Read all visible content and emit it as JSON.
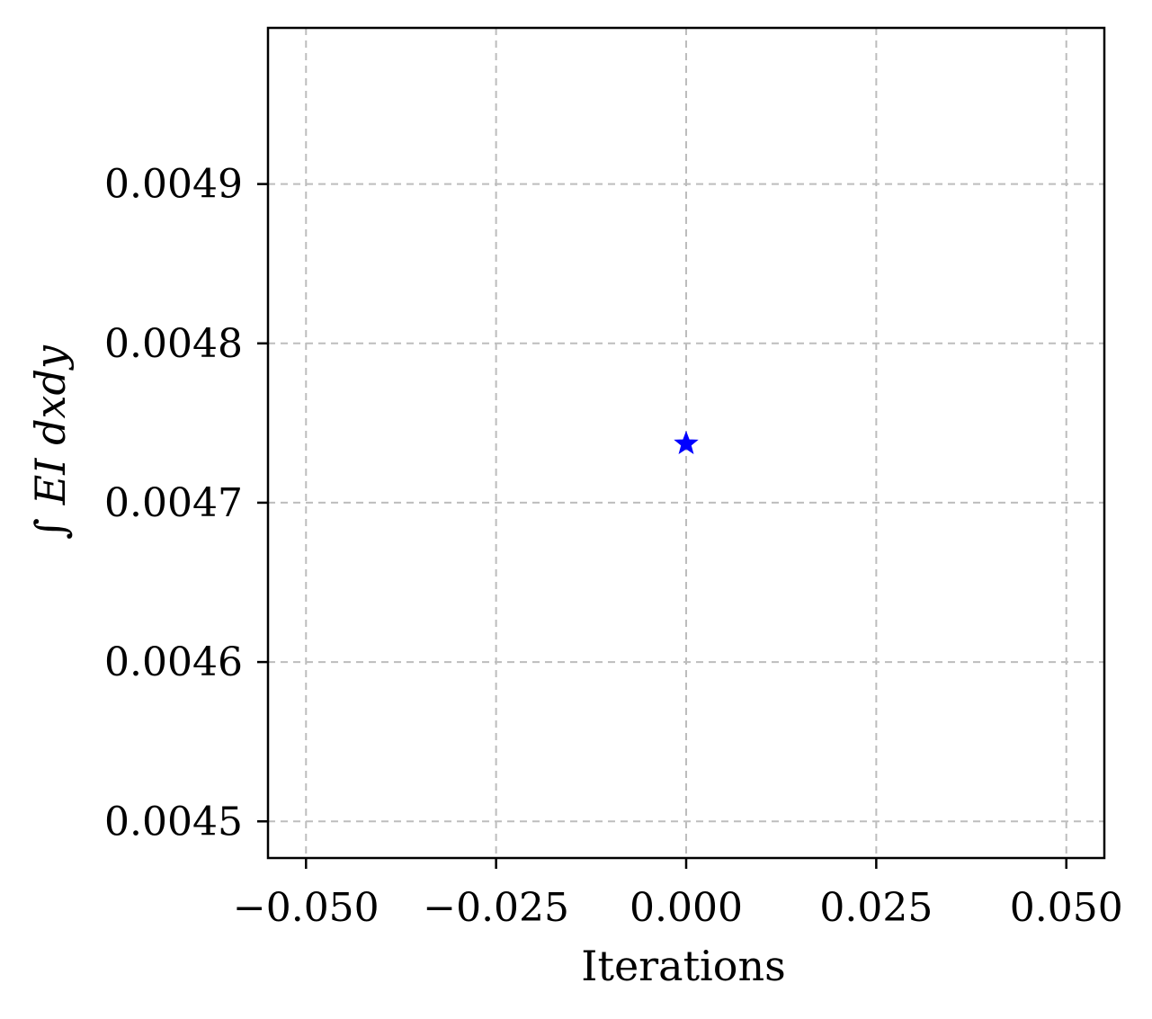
{
  "chart_data": {
    "type": "scatter",
    "xlabel": "Iterations",
    "ylabel": "∫ EI dxdy",
    "xlim": [
      -0.055,
      0.055
    ],
    "ylim": [
      0.004477,
      0.004998
    ],
    "xticks": [
      -0.05,
      -0.025,
      0.0,
      0.025,
      0.05
    ],
    "xtick_labels": [
      "−0.050",
      "−0.025",
      "0.000",
      "0.025",
      "0.050"
    ],
    "yticks": [
      0.0045,
      0.0046,
      0.0047,
      0.0048,
      0.0049
    ],
    "ytick_labels": [
      "0.0045",
      "0.0046",
      "0.0047",
      "0.0048",
      "0.0049"
    ],
    "grid": true,
    "series": [
      {
        "marker": "star",
        "color": "#0000ff",
        "points": [
          {
            "x": 0.0,
            "y": 0.004737
          }
        ]
      }
    ]
  }
}
